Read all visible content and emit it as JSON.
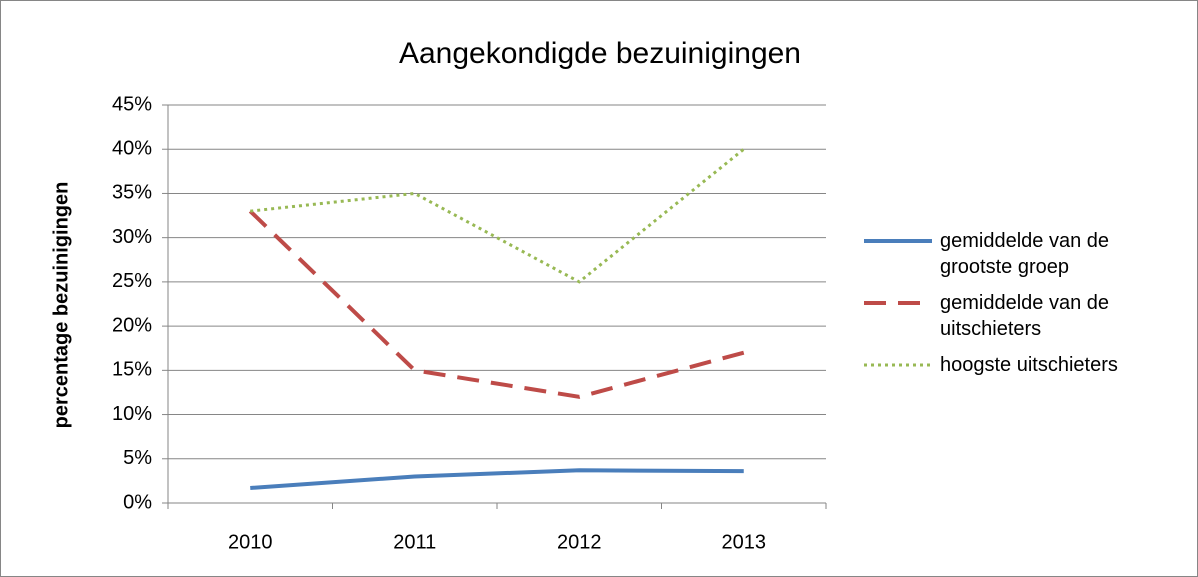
{
  "chart_data": {
    "type": "line",
    "title": "Aangekondigde bezuinigingen",
    "y_label": "percentage bezuinigingen",
    "categories": [
      "2010",
      "2011",
      "2012",
      "2013"
    ],
    "series": [
      {
        "name": "gemiddelde van de grootste groep",
        "color": "#4a7ebb",
        "style": "solid",
        "values": [
          1.7,
          3,
          3.7,
          3.6
        ]
      },
      {
        "name": "gemiddelde van de uitschieters",
        "color": "#be4b48",
        "style": "dashed",
        "values": [
          33,
          15,
          12,
          17
        ]
      },
      {
        "name": "hoogste uitschieters",
        "color": "#98b954",
        "style": "dotted",
        "values": [
          33,
          35,
          25,
          40
        ]
      }
    ],
    "ylim": [
      0,
      45
    ],
    "yticks": [
      {
        "value": 0,
        "label": "0%"
      },
      {
        "value": 5,
        "label": "5%"
      },
      {
        "value": 10,
        "label": "10%"
      },
      {
        "value": 15,
        "label": "15%"
      },
      {
        "value": 20,
        "label": "20%"
      },
      {
        "value": 25,
        "label": "25%"
      },
      {
        "value": 30,
        "label": "30%"
      },
      {
        "value": 35,
        "label": "35%"
      },
      {
        "value": 40,
        "label": "40%"
      },
      {
        "value": 45,
        "label": "45%"
      }
    ],
    "grid": true,
    "legend": "right"
  }
}
